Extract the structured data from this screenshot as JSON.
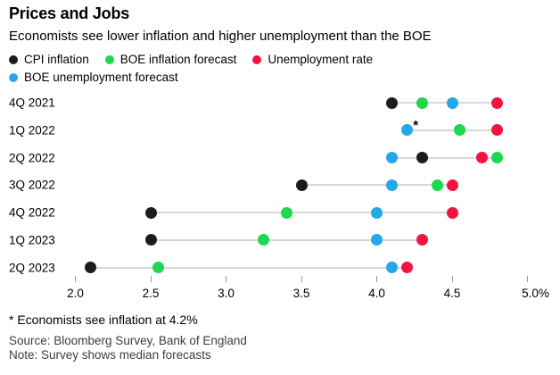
{
  "header": {
    "title": "Prices and Jobs",
    "subtitle": "Economists see lower inflation and higher unemployment than the BOE"
  },
  "chart_data": {
    "type": "scatter",
    "subtype": "horizontal-dot-plot",
    "title": "Prices and Jobs",
    "categories": [
      "4Q 2021",
      "1Q 2022",
      "2Q 2022",
      "3Q 2022",
      "4Q 2022",
      "1Q 2023",
      "2Q 2023"
    ],
    "series": [
      {
        "key": "cpi",
        "name": "CPI inflation",
        "color": "#1c1c1c",
        "values": [
          4.1,
          4.2,
          4.3,
          3.5,
          2.5,
          2.5,
          2.1
        ]
      },
      {
        "key": "boe_inflation",
        "name": "BOE inflation forecast",
        "color": "#1fd74f",
        "values": [
          4.3,
          4.55,
          4.8,
          4.4,
          3.4,
          3.25,
          2.55
        ]
      },
      {
        "key": "unemployment",
        "name": "Unemployment rate",
        "color": "#f1143e",
        "values": [
          4.8,
          4.8,
          4.7,
          4.5,
          4.5,
          4.3,
          4.2
        ]
      },
      {
        "key": "boe_unemployment",
        "name": "BOE unemployment forecast",
        "color": "#24a8e8",
        "values": [
          4.5,
          4.2,
          4.1,
          4.1,
          4.0,
          4.0,
          4.1
        ]
      }
    ],
    "hidden_points": [
      {
        "series": "cpi",
        "category": "1Q 2022",
        "value": 4.2,
        "marker": "*"
      }
    ],
    "xlim": [
      2.0,
      5.0
    ],
    "xticks": [
      2.0,
      2.5,
      3.0,
      3.5,
      4.0,
      4.5,
      5.0
    ],
    "xtick_labels": [
      "2.0",
      "2.5",
      "3.0",
      "3.5",
      "4.0",
      "4.5",
      "5.0%"
    ],
    "grid": false,
    "legend_position": "top",
    "connector_color": "#d8d8d8"
  },
  "footnote": "* Economists see inflation at 4.2%",
  "source": "Source: Bloomberg Survey, Bank of England",
  "note": "Note: Survey shows median forecasts"
}
